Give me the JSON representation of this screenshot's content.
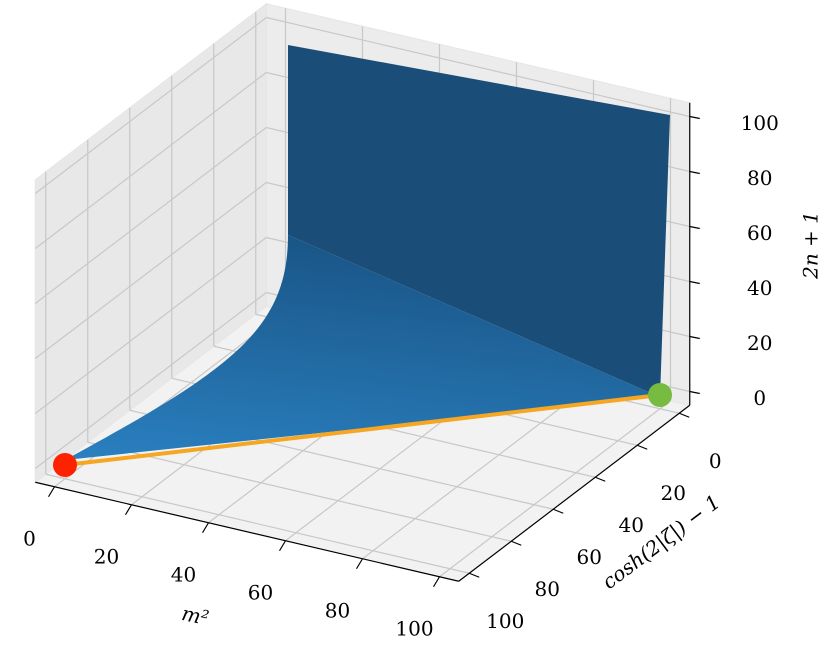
{
  "chart_data": {
    "type": "scatter3d",
    "xlabel": "m²",
    "ylabel": "cosh(2|ζ|) − 1",
    "zlabel": "2n + 1",
    "xlim": [
      -5,
      105
    ],
    "ylim": [
      -5,
      105
    ],
    "zlim": [
      -5,
      105
    ],
    "xticks": [
      0,
      20,
      40,
      60,
      80,
      100
    ],
    "yticks": [
      0,
      20,
      40,
      60,
      80,
      100
    ],
    "zticks": [
      0,
      20,
      40,
      60,
      80,
      100
    ],
    "grid": true,
    "series": [
      {
        "x": [
          0,
          100
        ],
        "y": [
          100,
          0
        ],
        "z": [
          0,
          0
        ],
        "colors": [
          "#ff2200",
          "#77bb41"
        ],
        "line_color": "#f5a623"
      }
    ]
  }
}
